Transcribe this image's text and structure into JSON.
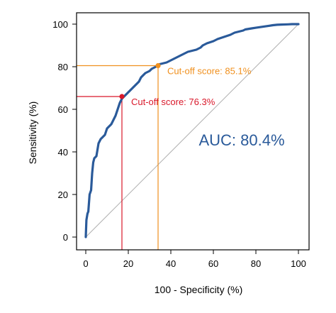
{
  "chart_data": {
    "type": "line",
    "title": "",
    "xlabel": "100 - Specificity (%)",
    "ylabel": "Sensitivity (%)",
    "xlim": [
      0,
      100
    ],
    "ylim": [
      0,
      100
    ],
    "x_ticks": [
      "0",
      "20",
      "40",
      "60",
      "80",
      "100"
    ],
    "y_ticks": [
      "0",
      "20",
      "40",
      "60",
      "80",
      "100"
    ],
    "grid": false,
    "legend": "none",
    "series": [
      {
        "color": "#2a5a9a",
        "x": [
          0,
          0.3,
          0.8,
          1.2,
          1.8,
          2.5,
          3,
          3.5,
          4,
          5,
          5.5,
          6,
          7,
          8,
          9,
          10,
          11,
          11.5,
          12,
          13,
          14,
          15,
          16,
          17,
          18,
          19,
          20,
          21,
          22,
          23,
          24,
          25,
          26,
          27,
          28,
          29,
          30,
          31,
          32,
          33,
          34,
          36,
          38,
          40,
          42,
          44,
          46,
          48,
          50,
          52,
          54,
          55,
          57,
          60,
          62,
          65,
          68,
          70,
          72,
          74,
          75,
          78,
          80,
          82,
          84,
          86,
          88,
          90,
          92,
          95,
          97,
          98,
          99,
          100
        ],
        "y": [
          0,
          8,
          11,
          12,
          20,
          22,
          30,
          35,
          37,
          38,
          41,
          44,
          46,
          47,
          48,
          51,
          52,
          52.5,
          53,
          55,
          57,
          60,
          63,
          65,
          66,
          67,
          68,
          69,
          70,
          71,
          72,
          73,
          75,
          76,
          77,
          77.5,
          78,
          79,
          79.5,
          80,
          81,
          81.5,
          82,
          83,
          84,
          85,
          86,
          87,
          87.5,
          88,
          89,
          90,
          91,
          92,
          93,
          94,
          95,
          96,
          96.5,
          97,
          97.5,
          98,
          98.3,
          98.6,
          98.9,
          99.2,
          99.5,
          99.7,
          99.8,
          99.9,
          100,
          100,
          100,
          100
        ]
      }
    ],
    "cutoffs": [
      {
        "label": "Cut-off score: 85.1%",
        "x": 34,
        "y": 80.5,
        "color": "#f0901e"
      },
      {
        "label": "Cut-off score: 76.3%",
        "x": 17,
        "y": 66,
        "color": "#d9182a"
      }
    ],
    "annotation": {
      "text": "AUC: 80.4%",
      "color": "#2a5a9a"
    },
    "reference_line": {
      "color": "#b0b0b0"
    }
  }
}
